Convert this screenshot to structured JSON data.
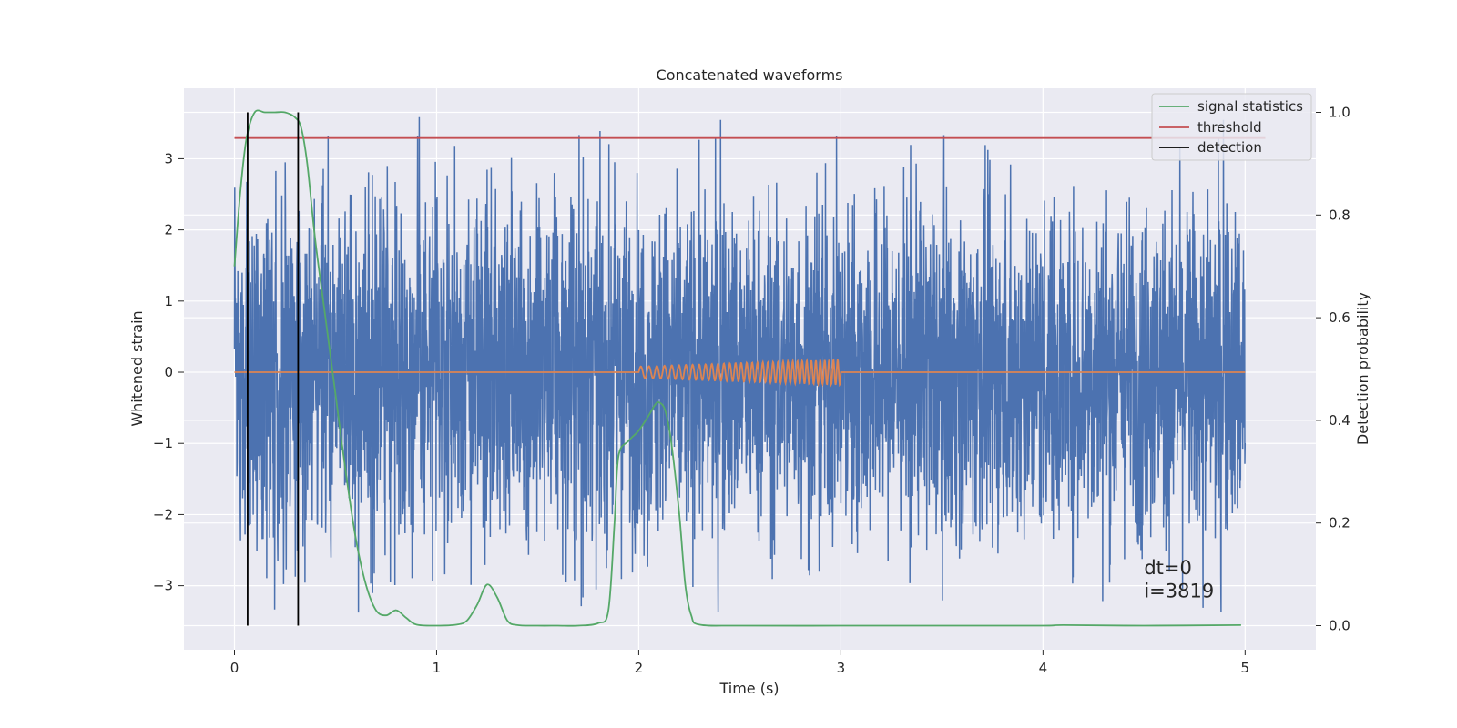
{
  "chart_data": {
    "type": "line",
    "title": "Concatenated waveforms",
    "xlabel": "Time (s)",
    "ylabel_left": "Whitened strain",
    "ylabel_right": "Detection probability",
    "xlim": [
      -0.25,
      5.35
    ],
    "ylim_left": [
      -3.9,
      3.99
    ],
    "ylim_right": [
      -0.047,
      1.047
    ],
    "x_ticks": [
      0,
      1,
      2,
      3,
      4,
      5
    ],
    "y_ticks_left": [
      -3,
      -2,
      -1,
      0,
      1,
      2,
      3
    ],
    "y_ticks_right": [
      0.0,
      0.2,
      0.4,
      0.6,
      0.8,
      1.0
    ],
    "grid": true,
    "legend_position": "top-right",
    "colors": {
      "strain": "#4c72b0",
      "injection": "#dd8452",
      "signal_statistics": "#55a868",
      "threshold": "#c44e52",
      "detection": "#000000",
      "background": "#eaeaf2",
      "grid": "#ffffff"
    },
    "series": [
      {
        "name": "",
        "axis": "left",
        "kind": "noise",
        "x_range": [
          0,
          5
        ],
        "typical_amplitude": 2.0,
        "max_amplitude": 3.6
      },
      {
        "name": "",
        "axis": "left",
        "kind": "chirp",
        "x_range": [
          0,
          5
        ],
        "chirp_start": 2.0,
        "chirp_end": 3.0,
        "chirp_amplitude_start": 0.08,
        "chirp_amplitude_end": 0.18
      },
      {
        "name": "signal statistics",
        "axis": "right",
        "x": [
          0.0,
          0.03,
          0.06,
          0.1,
          0.15,
          0.2,
          0.25,
          0.3,
          0.33,
          0.36,
          0.4,
          0.45,
          0.5,
          0.55,
          0.6,
          0.65,
          0.7,
          0.75,
          0.8,
          0.85,
          0.9,
          1.0,
          1.1,
          1.15,
          1.2,
          1.25,
          1.3,
          1.35,
          1.4,
          1.5,
          1.6,
          1.7,
          1.8,
          1.85,
          1.88,
          1.9,
          1.95,
          2.0,
          2.05,
          2.08,
          2.1,
          2.13,
          2.16,
          2.2,
          2.23,
          2.26,
          2.3,
          2.5,
          3.0,
          3.5,
          4.0,
          4.1,
          4.5,
          4.98
        ],
        "y": [
          0.7,
          0.85,
          0.95,
          1.0,
          1.0,
          1.0,
          1.0,
          0.99,
          0.97,
          0.9,
          0.75,
          0.6,
          0.45,
          0.3,
          0.17,
          0.08,
          0.03,
          0.02,
          0.03,
          0.015,
          0.002,
          0.0,
          0.002,
          0.01,
          0.04,
          0.08,
          0.055,
          0.01,
          0.001,
          0.0,
          0.0,
          0.0,
          0.005,
          0.03,
          0.2,
          0.33,
          0.36,
          0.38,
          0.41,
          0.43,
          0.435,
          0.42,
          0.36,
          0.22,
          0.08,
          0.02,
          0.002,
          0.0,
          0.0,
          0.0,
          0.0,
          0.001,
          0.0,
          0.001
        ]
      },
      {
        "name": "threshold",
        "axis": "right",
        "x": [
          0.0,
          5.1
        ],
        "y": [
          0.95,
          0.95
        ]
      },
      {
        "name": "detection",
        "axis": "right",
        "kind": "vlines",
        "x": [
          0.065,
          0.315
        ],
        "y_range": [
          0.0,
          1.0
        ]
      }
    ],
    "annotations": [
      {
        "text": "dt=0",
        "x": 4.5,
        "y_axis_right": 0.1
      },
      {
        "text": "i=3819",
        "x": 4.5,
        "y_axis_right": 0.055
      }
    ]
  }
}
